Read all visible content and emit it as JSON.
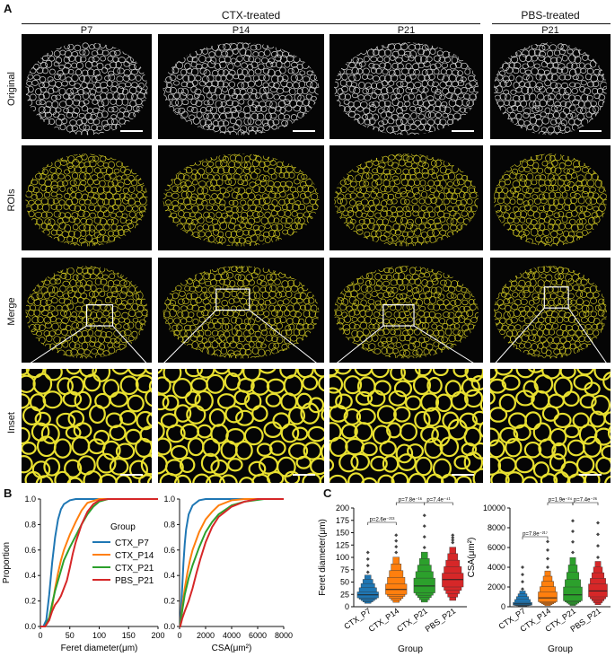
{
  "panel_a": {
    "letter": "A",
    "groups": [
      {
        "label": "CTX-treated"
      },
      {
        "label": "PBS-treated"
      }
    ],
    "columns": [
      "P7",
      "P14",
      "P21",
      "P21"
    ],
    "rows": [
      "Original",
      "ROIs",
      "Merge",
      "Inset"
    ],
    "colors": {
      "original": "#d8d8d8",
      "roi": "#c8c020",
      "inset": "#e8e030",
      "background": "#050505"
    }
  },
  "panel_b": {
    "letter": "B",
    "legend_title": "Group",
    "legend": [
      "CTX_P7",
      "CTX_P14",
      "CTX_P21",
      "PBS_P21"
    ]
  },
  "panel_c": {
    "letter": "C"
  },
  "chart_data": [
    {
      "type": "line",
      "name": "ECDF Feret diameter",
      "xlabel": "Feret diameter(μm)",
      "ylabel": "Proportion",
      "xlim": [
        0,
        200
      ],
      "ylim": [
        0,
        1.0
      ],
      "xticks": [
        "0",
        "50",
        "100",
        "150",
        "200"
      ],
      "yticks": [
        "0.0",
        "0.2",
        "0.4",
        "0.6",
        "0.8",
        "1.0"
      ],
      "series": [
        {
          "name": "CTX_P7",
          "color": "#1f77b4",
          "x": [
            5,
            10,
            15,
            20,
            25,
            30,
            35,
            40,
            50,
            60,
            75,
            100
          ],
          "y": [
            0,
            0.05,
            0.25,
            0.5,
            0.7,
            0.84,
            0.92,
            0.96,
            0.99,
            1.0,
            1.0,
            1.0
          ]
        },
        {
          "name": "CTX_P14",
          "color": "#ff7f0e",
          "x": [
            8,
            15,
            20,
            25,
            30,
            35,
            40,
            45,
            50,
            60,
            70,
            80,
            100
          ],
          "y": [
            0,
            0.05,
            0.15,
            0.3,
            0.42,
            0.52,
            0.6,
            0.66,
            0.72,
            0.82,
            0.91,
            0.97,
            1.0
          ]
        },
        {
          "name": "CTX_P21",
          "color": "#2ca02c",
          "x": [
            8,
            15,
            20,
            25,
            30,
            40,
            50,
            60,
            70,
            80,
            90,
            100,
            115
          ],
          "y": [
            0,
            0.07,
            0.18,
            0.28,
            0.36,
            0.52,
            0.62,
            0.71,
            0.8,
            0.88,
            0.94,
            0.98,
            1.0
          ]
        },
        {
          "name": "PBS_P21",
          "color": "#d62728",
          "x": [
            8,
            15,
            20,
            25,
            30,
            35,
            40,
            45,
            50,
            55,
            60,
            70,
            80,
            90,
            100,
            115
          ],
          "y": [
            0,
            0.05,
            0.12,
            0.17,
            0.2,
            0.24,
            0.3,
            0.36,
            0.46,
            0.57,
            0.66,
            0.8,
            0.9,
            0.96,
            0.99,
            1.0
          ]
        }
      ]
    },
    {
      "type": "line",
      "name": "ECDF CSA",
      "xlabel": "CSA(μm²)",
      "ylabel": "",
      "xlim": [
        0,
        8000
      ],
      "ylim": [
        0,
        1.0
      ],
      "xticks": [
        "0",
        "2000",
        "4000",
        "6000",
        "8000"
      ],
      "yticks": [
        "0.0",
        "0.2",
        "0.4",
        "0.6",
        "0.8",
        "1.0"
      ],
      "series": [
        {
          "name": "CTX_P7",
          "color": "#1f77b4",
          "x": [
            50,
            100,
            200,
            300,
            400,
            500,
            700,
            1000,
            1500,
            2000,
            3000
          ],
          "y": [
            0,
            0.1,
            0.3,
            0.5,
            0.65,
            0.76,
            0.88,
            0.95,
            0.99,
            1.0,
            1.0
          ]
        },
        {
          "name": "CTX_P14",
          "color": "#ff7f0e",
          "x": [
            50,
            200,
            400,
            600,
            800,
            1000,
            1500,
            2000,
            2500,
            3000,
            4000,
            5000
          ],
          "y": [
            0,
            0.15,
            0.3,
            0.42,
            0.52,
            0.6,
            0.74,
            0.84,
            0.9,
            0.95,
            0.99,
            1.0
          ]
        },
        {
          "name": "CTX_P21",
          "color": "#2ca02c",
          "x": [
            50,
            200,
            400,
            700,
            1000,
            1500,
            2000,
            2500,
            3000,
            4000,
            5000,
            6500
          ],
          "y": [
            0,
            0.12,
            0.25,
            0.38,
            0.48,
            0.62,
            0.74,
            0.82,
            0.88,
            0.95,
            0.98,
            1.0
          ]
        },
        {
          "name": "PBS_P21",
          "color": "#d62728",
          "x": [
            50,
            200,
            400,
            700,
            1000,
            1300,
            1600,
            2000,
            2500,
            3000,
            4000,
            5000,
            6000
          ],
          "y": [
            0,
            0.06,
            0.12,
            0.2,
            0.3,
            0.42,
            0.53,
            0.66,
            0.78,
            0.86,
            0.94,
            0.98,
            1.0
          ]
        }
      ]
    },
    {
      "type": "boxen",
      "name": "Feret diameter by group",
      "xlabel": "Group",
      "ylabel": "Feret diameter(μm)",
      "ylim": [
        0,
        200
      ],
      "yticks": [
        "0",
        "25",
        "50",
        "75",
        "100",
        "125",
        "150",
        "175",
        "200"
      ],
      "categories": [
        "CTX_P7",
        "CTX_P14",
        "CTX_P21",
        "PBS_P21"
      ],
      "colors": [
        "#1f77b4",
        "#ff7f0e",
        "#2ca02c",
        "#d62728"
      ],
      "medians": [
        24,
        35,
        42,
        55
      ],
      "quantiles": [
        [
          18,
          30
        ],
        [
          25,
          46
        ],
        [
          28,
          58
        ],
        [
          40,
          68
        ]
      ],
      "ranges": [
        [
          5,
          70
        ],
        [
          6,
          110
        ],
        [
          6,
          120
        ],
        [
          8,
          130
        ]
      ],
      "outliers_max": [
        110,
        145,
        185,
        145
      ],
      "annotations": [
        {
          "from": 0,
          "to": 1,
          "label": "p=2.6e⁻²¹³"
        },
        {
          "from": 1,
          "to": 2,
          "label": "p=7.8e⁻¹⁶"
        },
        {
          "from": 2,
          "to": 3,
          "label": "p=7.4e⁻⁴¹"
        }
      ]
    },
    {
      "type": "boxen",
      "name": "CSA by group",
      "xlabel": "Group",
      "ylabel": "CSA(μm²)",
      "ylim": [
        0,
        10000
      ],
      "yticks": [
        "0",
        "2000",
        "4000",
        "6000",
        "8000",
        "10000"
      ],
      "categories": [
        "CTX_P7",
        "CTX_P14",
        "CTX_P21",
        "PBS_P21"
      ],
      "colors": [
        "#1f77b4",
        "#ff7f0e",
        "#2ca02c",
        "#d62728"
      ],
      "medians": [
        280,
        900,
        1200,
        1600
      ],
      "quantiles": [
        [
          150,
          450
        ],
        [
          500,
          1500
        ],
        [
          600,
          2000
        ],
        [
          1000,
          2300
        ]
      ],
      "ranges": [
        [
          20,
          1800
        ],
        [
          30,
          4000
        ],
        [
          40,
          5500
        ],
        [
          60,
          5000
        ]
      ],
      "outliers_max": [
        4000,
        6600,
        8700,
        8500
      ],
      "annotations": [
        {
          "from": 0,
          "to": 1,
          "label": "p=7.8e⁻²¹⁷"
        },
        {
          "from": 1,
          "to": 2,
          "label": "p=1.9e⁻²⁴"
        },
        {
          "from": 2,
          "to": 3,
          "label": "p=7.4e⁻²⁶"
        }
      ]
    }
  ]
}
